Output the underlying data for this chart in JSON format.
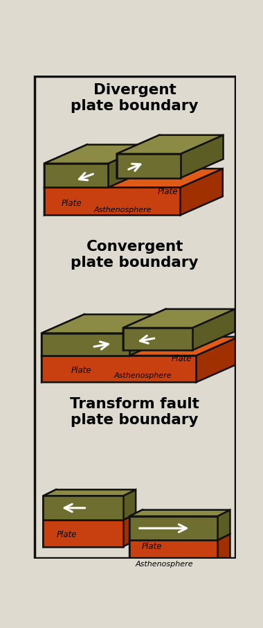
{
  "bg_color": "#dedad0",
  "border_color": "#111111",
  "plate_top_color": "#8b8b46",
  "plate_side_color": "#5c5c25",
  "plate_front_color": "#6e6e30",
  "plate_dark_color": "#4a4a18",
  "asth_top_color": "#e05a18",
  "asth_side_color": "#a03000",
  "asth_front_color": "#c84010",
  "outline_color": "#111111",
  "title1": "Divergent\nplate boundary",
  "title2": "Convergent\nplate boundary",
  "title3": "Transform fault\nplate boundary"
}
